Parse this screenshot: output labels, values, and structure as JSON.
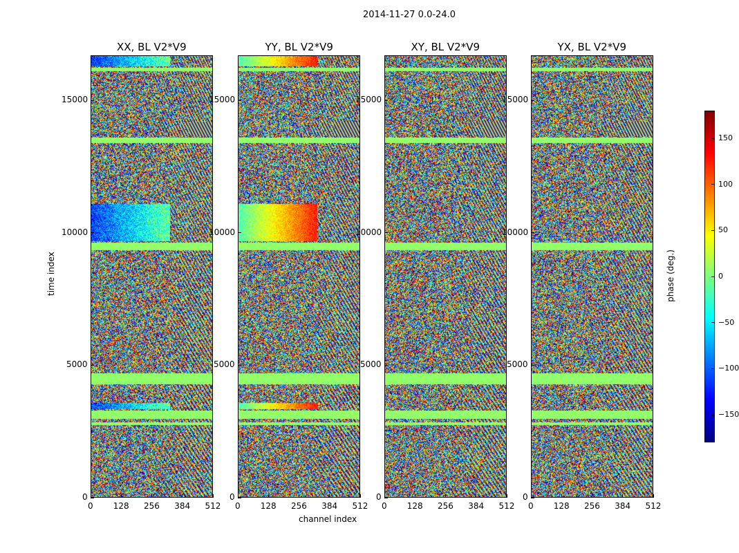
{
  "chart_data": {
    "type": "heatmap",
    "suptitle": "2014-11-27 0.0-24.0",
    "panels": [
      {
        "title": "XX, BL V2*V9",
        "pol": "XX"
      },
      {
        "title": "YY, BL V2*V9",
        "pol": "YY"
      },
      {
        "title": "XY, BL V2*V9",
        "pol": "XY"
      },
      {
        "title": "YX, BL V2*V9",
        "pol": "YX"
      }
    ],
    "xlabel": "channel index",
    "ylabel": "time index",
    "xlim": [
      0,
      512
    ],
    "ylim": [
      0,
      16700
    ],
    "xticks": [
      0,
      128,
      256,
      384,
      512
    ],
    "yticks": [
      0,
      5000,
      10000,
      15000
    ],
    "colorbar": {
      "label": "phase (deg.)",
      "range": [
        -180,
        180
      ],
      "ticks": [
        -150,
        -100,
        -50,
        0,
        50,
        100,
        150
      ],
      "ticklabels": [
        "−150",
        "−100",
        "−50",
        "0",
        "50",
        "100",
        "150"
      ],
      "colormap": "jet"
    },
    "bands": [
      {
        "y0": 4300,
        "y1": 4700,
        "kind": "flat"
      },
      {
        "y0": 9350,
        "y1": 9650,
        "kind": "flat"
      },
      {
        "y0": 3000,
        "y1": 3300,
        "kind": "flat"
      },
      {
        "y0": 2750,
        "y1": 2850,
        "kind": "flat"
      },
      {
        "y0": 13400,
        "y1": 13600,
        "kind": "flat"
      },
      {
        "y0": 16100,
        "y1": 16250,
        "kind": "flat"
      },
      {
        "y0": 3350,
        "y1": 3600,
        "kind": "strong"
      },
      {
        "y0": 9700,
        "y1": 11100,
        "kind": "strong"
      },
      {
        "y0": 13650,
        "y1": 14200,
        "kind": "fringe"
      },
      {
        "y0": 16300,
        "y1": 16700,
        "kind": "strong"
      }
    ]
  }
}
